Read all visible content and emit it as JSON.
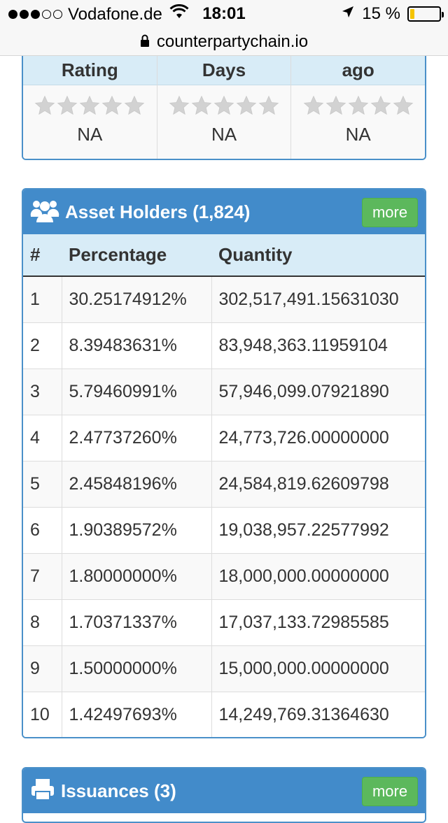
{
  "status_bar": {
    "carrier": "Vodafone.de",
    "time": "18:01",
    "battery_percent": "15 %",
    "battery_level": 0.15,
    "signal_bars": 3,
    "signal_total": 5
  },
  "url_bar": {
    "domain": "counterpartychain.io"
  },
  "rating_panel": {
    "columns": [
      {
        "header": "Rating",
        "value": "NA",
        "stars": 0
      },
      {
        "header": "Days",
        "value": "NA",
        "stars": 0
      },
      {
        "header": "ago",
        "value": "NA",
        "stars": 0
      }
    ]
  },
  "holders_panel": {
    "title": "Asset Holders (1,824)",
    "more_label": "more",
    "columns": [
      "#",
      "Percentage",
      "Quantity"
    ],
    "rows": [
      {
        "rank": "1",
        "percentage": "30.25174912%",
        "quantity": "302,517,491.15631030"
      },
      {
        "rank": "2",
        "percentage": "8.39483631%",
        "quantity": "83,948,363.11959104"
      },
      {
        "rank": "3",
        "percentage": "5.79460991%",
        "quantity": "57,946,099.07921890"
      },
      {
        "rank": "4",
        "percentage": "2.47737260%",
        "quantity": "24,773,726.00000000"
      },
      {
        "rank": "5",
        "percentage": "2.45848196%",
        "quantity": "24,584,819.62609798"
      },
      {
        "rank": "6",
        "percentage": "1.90389572%",
        "quantity": "19,038,957.22577992"
      },
      {
        "rank": "7",
        "percentage": "1.80000000%",
        "quantity": "18,000,000.00000000"
      },
      {
        "rank": "8",
        "percentage": "1.70371337%",
        "quantity": "17,037,133.72985585"
      },
      {
        "rank": "9",
        "percentage": "1.50000000%",
        "quantity": "15,000,000.00000000"
      },
      {
        "rank": "10",
        "percentage": "1.42497693%",
        "quantity": "14,249,769.31364630"
      }
    ]
  },
  "issuances_panel": {
    "title": "Issuances (3)",
    "more_label": "more"
  },
  "colors": {
    "panel_header": "#428bca",
    "panel_border": "#4a90c9",
    "table_header": "#d8ecf7",
    "more_button": "#5cb85c",
    "battery_fill": "#f5c400",
    "star_gray": "#d2d2d2"
  }
}
